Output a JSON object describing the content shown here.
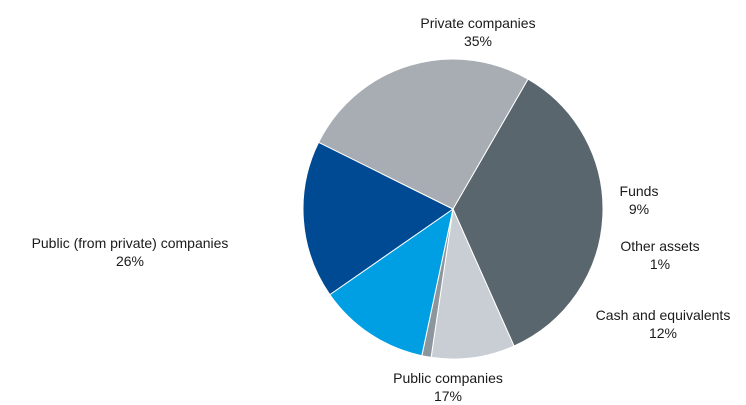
{
  "chart_data": {
    "type": "pie",
    "title": "",
    "start_angle_deg": 60,
    "direction": "clockwise",
    "slices": [
      {
        "label": "Private companies",
        "value": 35,
        "display": "35%",
        "color": "#59666d"
      },
      {
        "label": "Funds",
        "value": 9,
        "display": "9%",
        "color": "#c8ced3"
      },
      {
        "label": "Other assets",
        "value": 1,
        "display": "1%",
        "color": "#8c969c"
      },
      {
        "label": "Cash and equivalents",
        "value": 12,
        "display": "12%",
        "color": "#009fe3"
      },
      {
        "label": "Public companies",
        "value": 17,
        "display": "17%",
        "color": "#004a93"
      },
      {
        "label": "Public (from private) companies",
        "value": 26,
        "display": "26%",
        "color": "#a7adb2"
      }
    ]
  }
}
